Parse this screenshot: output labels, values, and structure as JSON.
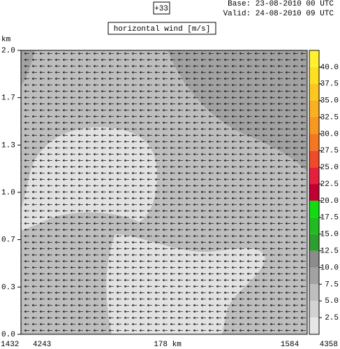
{
  "header": {
    "step": "+33",
    "base": "Base: 23-08-2010  00 UTC",
    "valid": "Valid: 24-08-2010  09 UTC"
  },
  "chart_data": {
    "type": "contour",
    "title": "horizontal wind [m/s]",
    "y_label": "km",
    "ylim": [
      0,
      2
    ],
    "yticks": [
      {
        "value": 0,
        "label": "0.0"
      },
      {
        "value": 0.333,
        "label": "0.3"
      },
      {
        "value": 0.667,
        "label": "0.7"
      },
      {
        "value": 1,
        "label": "1.0"
      },
      {
        "value": 1.333,
        "label": "1.3"
      },
      {
        "value": 1.667,
        "label": "1.7"
      },
      {
        "value": 2,
        "label": "2.0"
      }
    ],
    "x_labels": [
      "1432",
      "4243",
      "178 km",
      "1584",
      "4358"
    ],
    "colorbar": {
      "lim": [
        0,
        42.5
      ],
      "ticks": [
        2.5,
        {
          "value": 5,
          "label": "5.0"
        },
        7.5,
        {
          "value": 10,
          "label": "10.0"
        },
        12.5,
        {
          "value": 15,
          "label": "15.0"
        },
        17.5,
        {
          "value": 20,
          "label": "20.0"
        },
        22.5,
        {
          "value": 25,
          "label": "25.0"
        },
        27.5,
        {
          "value": 30,
          "label": "30.0"
        },
        32.5,
        {
          "value": 35,
          "label": "35.0"
        },
        37.5,
        {
          "value": 40,
          "label": "40.0"
        }
      ],
      "colors": [
        "#e6e6e6",
        "#d2d2d2",
        "#bebebe",
        "#a2a2a2",
        "#8c8c8c",
        "#2e9e2e",
        "#22bb22",
        "#10dd10",
        "#c00030",
        "#e4203c",
        "#f04a28",
        "#f47820",
        "#f89820",
        "#fab020",
        "#fcc820",
        "#fee020",
        "#fff030"
      ]
    }
  }
}
